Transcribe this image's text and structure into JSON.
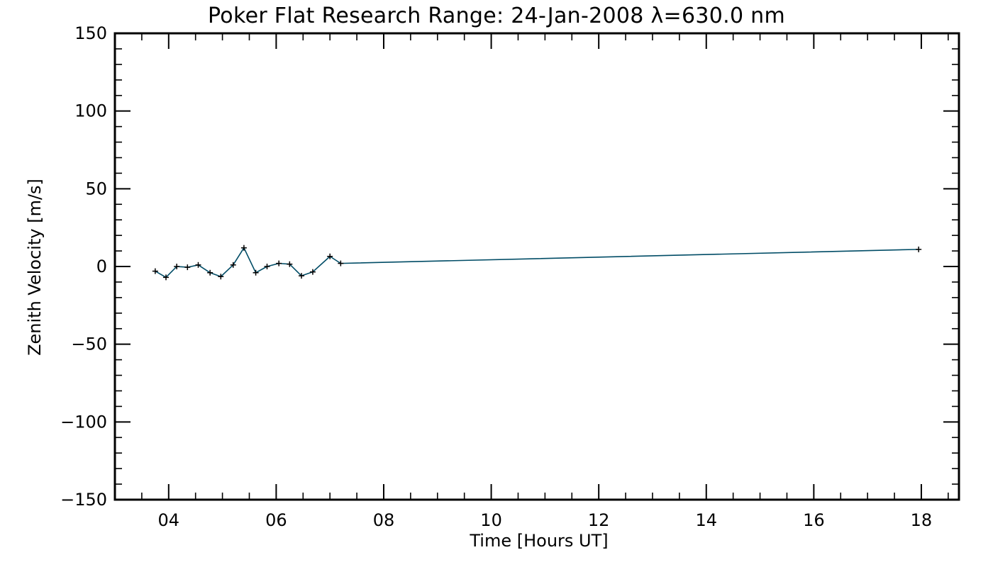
{
  "chart_data": {
    "type": "line",
    "title": "Poker Flat Research Range: 24-Jan-2008 λ=630.0 nm",
    "xlabel": "Time [Hours UT]",
    "ylabel": "Zenith Velocity [m/s]",
    "xlim": [
      3.0,
      18.7
    ],
    "ylim": [
      -150,
      150
    ],
    "x_ticks": [
      4,
      6,
      8,
      10,
      12,
      14,
      16,
      18
    ],
    "x_tick_labels": [
      "04",
      "06",
      "08",
      "10",
      "12",
      "14",
      "16",
      "18"
    ],
    "y_ticks": [
      -150,
      -100,
      -50,
      0,
      50,
      100,
      150
    ],
    "y_tick_labels": [
      "−150",
      "−100",
      "−50",
      "0",
      "50",
      "100",
      "150"
    ],
    "grid": false,
    "series": [
      {
        "x": [
          3.75,
          3.95,
          4.15,
          4.35,
          4.55,
          4.77,
          4.97,
          5.2,
          5.4,
          5.62,
          5.83,
          6.05,
          6.25,
          6.47,
          6.68,
          7.0,
          7.2,
          17.95
        ],
        "y": [
          -3,
          -7,
          0,
          -0.5,
          1,
          -4,
          -6.5,
          1,
          12,
          -4,
          0,
          2,
          1.5,
          -6,
          -3.5,
          6.5,
          2,
          11
        ],
        "color": "#004c66",
        "marker": "+"
      }
    ]
  }
}
